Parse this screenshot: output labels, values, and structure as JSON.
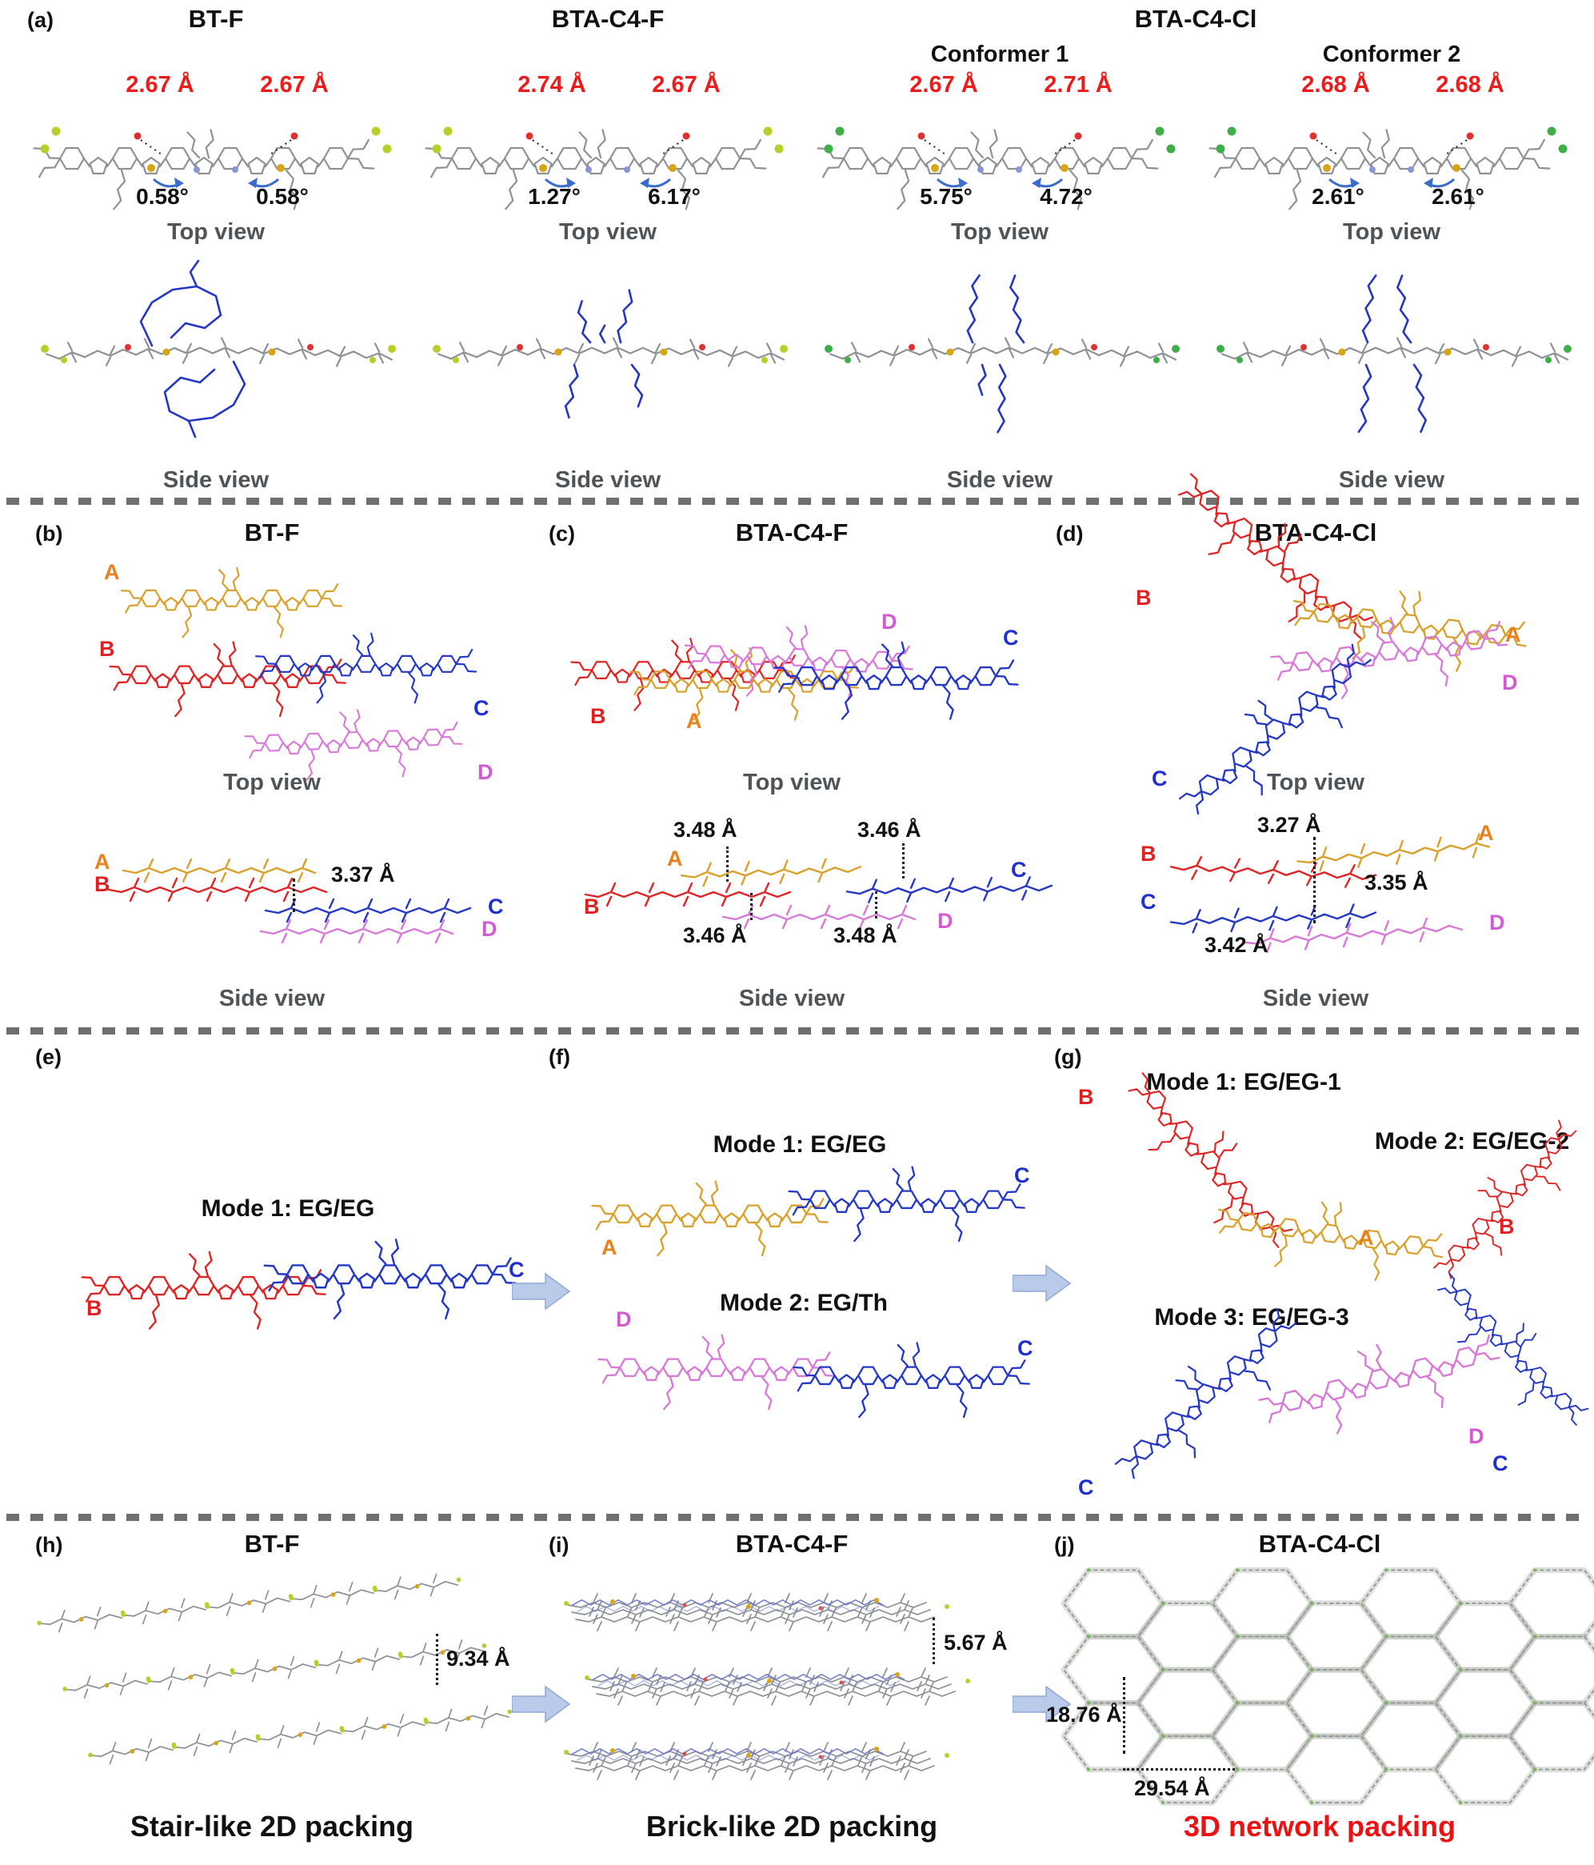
{
  "colors": {
    "distance_red": "#ee1b1b",
    "caption_red": "#ee1111",
    "mol_gray": "#8e9297",
    "mol_orange": "#d9a02a",
    "mol_red": "#e02424",
    "mol_blue": "#2438c8",
    "mol_violet": "#d878d8",
    "halogen_f": "#b8cf2a",
    "halogen_cl": "#3fae49",
    "arrow_blue": "#b9cbe8"
  },
  "icons": {
    "flow_arrow": "arrow-right"
  },
  "section_a": {
    "tag": "(a)",
    "titles": {
      "bt_f": "BT-F",
      "bta_c4_f": "BTA-C4-F",
      "bta_c4_cl": "BTA-C4-Cl"
    },
    "conformer1": "Conformer 1",
    "conformer2": "Conformer 2",
    "top_view": "Top view",
    "side_view": "Side view",
    "cols": [
      {
        "dl": "2.67 Å",
        "dr": "2.67 Å",
        "al": "0.58°",
        "ar": "0.58°"
      },
      {
        "dl": "2.74 Å",
        "dr": "2.67 Å",
        "al": "1.27°",
        "ar": "6.17°"
      },
      {
        "dl": "2.67 Å",
        "dr": "2.71 Å",
        "al": "5.75°",
        "ar": "4.72°"
      },
      {
        "dl": "2.68 Å",
        "dr": "2.68 Å",
        "al": "2.61°",
        "ar": "2.61°"
      }
    ]
  },
  "section_b": {
    "tag": "(b)",
    "title": "BT-F",
    "top_view": "Top view",
    "side_view": "Side view",
    "labels": {
      "A": "A",
      "B": "B",
      "C": "C",
      "D": "D"
    },
    "side_labels": {
      "A": "A",
      "B": "B",
      "C": "C",
      "D": "D"
    },
    "d1": "3.37 Å"
  },
  "section_c": {
    "tag": "(c)",
    "title": "BTA-C4-F",
    "top_view": "Top view",
    "side_view": "Side view",
    "labels": {
      "B": "B",
      "A": "A",
      "D": "D",
      "C": "C"
    },
    "side_labels": {
      "A": "A",
      "B": "B",
      "C": "C",
      "D": "D"
    },
    "d_top_left": "3.48 Å",
    "d_top_right": "3.46 Å",
    "d_bot_left": "3.46 Å",
    "d_bot_right": "3.48 Å"
  },
  "section_d": {
    "tag": "(d)",
    "title": "BTA-C4-Cl",
    "top_view": "Top view",
    "side_view": "Side view",
    "labels": {
      "B": "B",
      "A": "A",
      "D": "D",
      "C": "C"
    },
    "side_labels": {
      "B": "B",
      "A": "A",
      "C": "C",
      "D": "D"
    },
    "d1": "3.27 Å",
    "d2": "3.35 Å",
    "d3": "3.42 Å"
  },
  "section_e": {
    "tag": "(e)",
    "mode1": "Mode 1:  EG/EG",
    "label_b": "B",
    "label_c": "C"
  },
  "section_f": {
    "tag": "(f)",
    "mode1": "Mode 1: EG/EG",
    "mode2": "Mode 2: EG/Th",
    "m1_a": "A",
    "m1_c": "C",
    "m2_d": "D",
    "m2_c": "C"
  },
  "section_g": {
    "tag": "(g)",
    "mode1": "Mode 1: EG/EG-1",
    "mode2": "Mode 2: EG/EG-2",
    "mode3": "Mode 3: EG/EG-3",
    "m1_b": "B",
    "m1_a": "A",
    "m2_b": "B",
    "m2_c": "C",
    "m3_c": "C",
    "m3_d": "D"
  },
  "section_h": {
    "tag": "(h)",
    "title": "BT-F",
    "d": "9.34 Å",
    "caption": "Stair-like 2D packing"
  },
  "section_i": {
    "tag": "(i)",
    "title": "BTA-C4-F",
    "d": "5.67 Å",
    "caption": "Brick-like 2D packing"
  },
  "section_j": {
    "tag": "(j)",
    "title": "BTA-C4-Cl",
    "d1": "18.76 Å",
    "d2": "29.54 Å",
    "caption": "3D network packing"
  }
}
